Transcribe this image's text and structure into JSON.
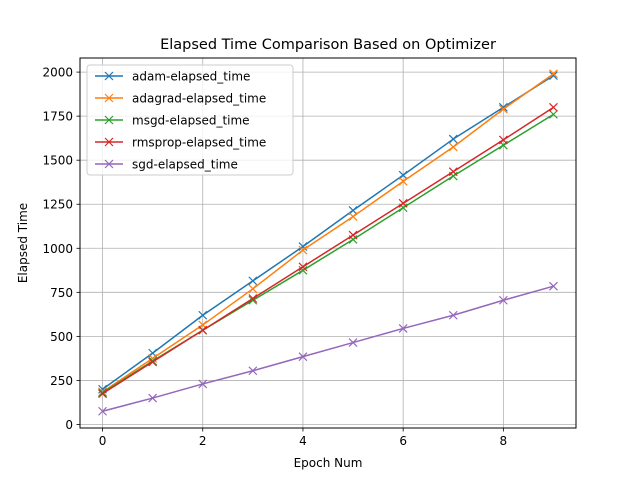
{
  "chart_data": {
    "type": "line",
    "title": "Elapsed Time Comparison Based on Optimizer",
    "xlabel": "Epoch Num",
    "ylabel": "Elapsed Time",
    "xlim": [
      -0.45,
      9.45
    ],
    "ylim": [
      -20,
      2080
    ],
    "xticks": [
      0,
      2,
      4,
      6,
      8
    ],
    "yticks": [
      0,
      250,
      500,
      750,
      1000,
      1250,
      1500,
      1750,
      2000
    ],
    "xtick_labels": [
      "0",
      "2",
      "4",
      "6",
      "8"
    ],
    "ytick_labels": [
      "0",
      "250",
      "500",
      "750",
      "1000",
      "1250",
      "1500",
      "1750",
      "2000"
    ],
    "grid": true,
    "legend_position": "upper-left",
    "marker": "x",
    "x": [
      0,
      1,
      2,
      3,
      4,
      5,
      6,
      7,
      8,
      9
    ],
    "series": [
      {
        "name": "adam-elapsed_time",
        "color": "#1f77b4",
        "values": [
          200,
          405,
          620,
          815,
          1010,
          1215,
          1415,
          1620,
          1800,
          1980
        ]
      },
      {
        "name": "adagrad-elapsed_time",
        "color": "#ff7f0e",
        "values": [
          185,
          375,
          565,
          770,
          990,
          1180,
          1380,
          1575,
          1790,
          1990
        ]
      },
      {
        "name": "msgd-elapsed_time",
        "color": "#2ca02c",
        "values": [
          180,
          360,
          535,
          705,
          875,
          1050,
          1230,
          1410,
          1585,
          1760
        ]
      },
      {
        "name": "rmsprop-elapsed_time",
        "color": "#d62728",
        "values": [
          175,
          355,
          535,
          715,
          895,
          1075,
          1255,
          1435,
          1615,
          1800
        ]
      },
      {
        "name": "sgd-elapsed_time",
        "color": "#9467bd",
        "values": [
          75,
          150,
          230,
          305,
          385,
          465,
          545,
          620,
          705,
          785
        ]
      }
    ]
  }
}
